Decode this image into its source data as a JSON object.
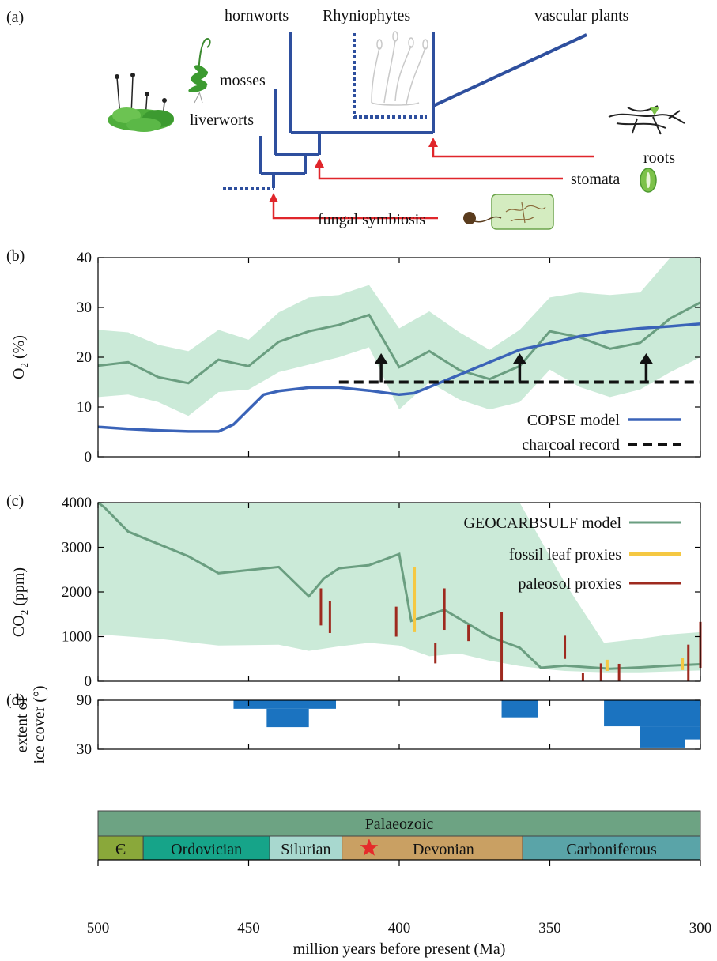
{
  "panels": {
    "a": "(a)",
    "b": "(b)",
    "c": "(c)",
    "d": "(d)"
  },
  "phylogeny": {
    "taxa": [
      "hornworts",
      "Rhyniophytes",
      "vascular plants",
      "mosses",
      "liverworts"
    ],
    "innovations": [
      "roots",
      "stomata",
      "fungal symbiosis"
    ],
    "colors": {
      "tree": "#2e4f9e",
      "arrows": "#e0262b"
    }
  },
  "chart_data": [
    {
      "panel": "b",
      "type": "line",
      "ylabel_main": "O",
      "ylabel_sub": "2",
      "ylabel_tail": " (%)",
      "xlim": [
        500,
        300
      ],
      "ylim": [
        0,
        40
      ],
      "yticks": [
        0,
        10,
        20,
        30,
        40
      ],
      "x_reversed": true,
      "band": {
        "x": [
          500,
          490,
          480,
          470,
          460,
          450,
          440,
          430,
          420,
          410,
          400,
          390,
          380,
          370,
          360,
          350,
          340,
          330,
          320,
          310,
          300
        ],
        "upper": [
          25.5,
          25,
          22.5,
          21.2,
          25.5,
          23.5,
          29,
          32,
          32.5,
          34.5,
          25.8,
          29.2,
          25,
          21.5,
          25.5,
          32,
          33,
          32.5,
          33,
          40,
          40
        ],
        "lower": [
          12,
          12.5,
          11,
          8.2,
          13,
          13.5,
          17,
          18.5,
          20,
          22,
          9.5,
          15,
          11.5,
          9.5,
          11,
          17.5,
          14,
          12,
          13.5,
          17,
          20
        ],
        "color": "#cbead8"
      },
      "series": [
        {
          "name": "",
          "color": "#6a9e80",
          "x": [
            500,
            490,
            480,
            470,
            460,
            450,
            440,
            430,
            420,
            410,
            400,
            390,
            380,
            370,
            360,
            350,
            340,
            330,
            320,
            310,
            300
          ],
          "y": [
            18.3,
            19,
            16,
            14.8,
            19.5,
            18.2,
            23.1,
            25.2,
            26.5,
            28.5,
            18,
            21.2,
            17.4,
            15.6,
            18.2,
            25.2,
            24,
            21.7,
            22.9,
            27.8,
            31
          ]
        },
        {
          "name": "COPSE model",
          "color": "#3a63b8",
          "x": [
            500,
            490,
            480,
            470,
            460,
            455,
            450,
            445,
            440,
            430,
            420,
            410,
            400,
            395,
            390,
            380,
            370,
            360,
            350,
            340,
            330,
            320,
            310,
            300
          ],
          "y": [
            6,
            5.6,
            5.3,
            5.1,
            5.1,
            6.5,
            9.5,
            12.5,
            13.2,
            13.9,
            13.9,
            13.3,
            12.5,
            12.8,
            14,
            16.5,
            19,
            21.5,
            22.8,
            24.2,
            25.2,
            25.8,
            26.2,
            26.7
          ]
        },
        {
          "name": "charcoal record",
          "color": "#111111",
          "dashed": true,
          "x": [
            420,
            300
          ],
          "y": [
            15,
            15
          ]
        }
      ],
      "arrows_x": [
        406,
        360,
        318
      ]
    },
    {
      "panel": "c",
      "type": "line",
      "ylabel_main": "CO",
      "ylabel_sub": "2",
      "ylabel_tail": " (ppm)",
      "xlim": [
        500,
        300
      ],
      "ylim": [
        0,
        4000
      ],
      "yticks": [
        0,
        1000,
        2000,
        3000,
        4000
      ],
      "x_reversed": true,
      "band": {
        "x": [
          500,
          480,
          460,
          440,
          430,
          420,
          410,
          400,
          390,
          380,
          370,
          360,
          350,
          345,
          332,
          320,
          310,
          300
        ],
        "upper": [
          4000,
          4000,
          4000,
          4000,
          4000,
          4000,
          4000,
          4000,
          4000,
          4000,
          4000,
          4000,
          2800,
          2200,
          860,
          950,
          1050,
          1100
        ],
        "lower": [
          1050,
          950,
          800,
          820,
          680,
          780,
          860,
          800,
          560,
          620,
          460,
          340,
          260,
          230,
          200,
          200,
          220,
          240
        ],
        "color": "#cbead8"
      },
      "series": [
        {
          "name": "GEOCARBSULF model",
          "color": "#6a9e80",
          "x": [
            500,
            498,
            490,
            470,
            460,
            440,
            430,
            425,
            420,
            410,
            400,
            396,
            385,
            370,
            360,
            353,
            345,
            330,
            320,
            310,
            300
          ],
          "y": [
            4000,
            3900,
            3350,
            2800,
            2420,
            2560,
            1900,
            2300,
            2530,
            2600,
            2850,
            1350,
            1600,
            1000,
            750,
            300,
            350,
            280,
            310,
            350,
            380
          ]
        }
      ],
      "fossil_leaf": {
        "name": "fossil leaf proxies",
        "color": "#f5c842",
        "bars": [
          [
            395,
            1100,
            2550
          ],
          [
            331,
            230,
            480
          ],
          [
            306,
            250,
            520
          ]
        ]
      },
      "paleosol": {
        "name": "paleosol proxies",
        "color": "#9e2a1f",
        "bars": [
          [
            426,
            1250,
            2080
          ],
          [
            423,
            1080,
            1800
          ],
          [
            401,
            1000,
            1670
          ],
          [
            388,
            400,
            850
          ],
          [
            385,
            1150,
            2080
          ],
          [
            377,
            900,
            1260
          ],
          [
            366,
            0,
            1550
          ],
          [
            345,
            500,
            1020
          ],
          [
            339,
            0,
            180
          ],
          [
            333,
            0,
            400
          ],
          [
            327,
            0,
            390
          ],
          [
            304,
            0,
            820
          ],
          [
            300,
            300,
            1330
          ]
        ]
      }
    },
    {
      "panel": "d",
      "type": "bar",
      "ylabel_line1": "extent of",
      "ylabel_line2": "ice cover (°)",
      "xlim": [
        500,
        300
      ],
      "ylim": [
        30,
        90
      ],
      "yticks": [
        30,
        90
      ],
      "x_reversed": true,
      "color": "#1b73c0",
      "blocks": [
        [
          455,
          421,
          79.5,
          90
        ],
        [
          444,
          430,
          57,
          79.5
        ],
        [
          366,
          354,
          69,
          90
        ],
        [
          332,
          300,
          58,
          90
        ],
        [
          320,
          305,
          32,
          58
        ],
        [
          305,
          300,
          42,
          58
        ]
      ]
    }
  ],
  "timescale": {
    "era": {
      "label": "Palaeozoic",
      "start": 500,
      "end": 300,
      "color": "#6da383"
    },
    "periods": [
      {
        "label": "Є",
        "start": 500,
        "end": 485,
        "color": "#8aa83a"
      },
      {
        "label": "Ordovician",
        "start": 485,
        "end": 443,
        "color": "#16a489"
      },
      {
        "label": "Silurian",
        "start": 443,
        "end": 419,
        "color": "#a8d8cf"
      },
      {
        "label": "Devonian",
        "start": 419,
        "end": 359,
        "color": "#c9a063"
      },
      {
        "label": "Carboniferous",
        "start": 359,
        "end": 300,
        "color": "#5aa4a8"
      }
    ],
    "star_color": "#e52a2a"
  },
  "xaxis": {
    "ticks": [
      500,
      450,
      400,
      350,
      300
    ],
    "label": "million years before present (Ma)"
  }
}
